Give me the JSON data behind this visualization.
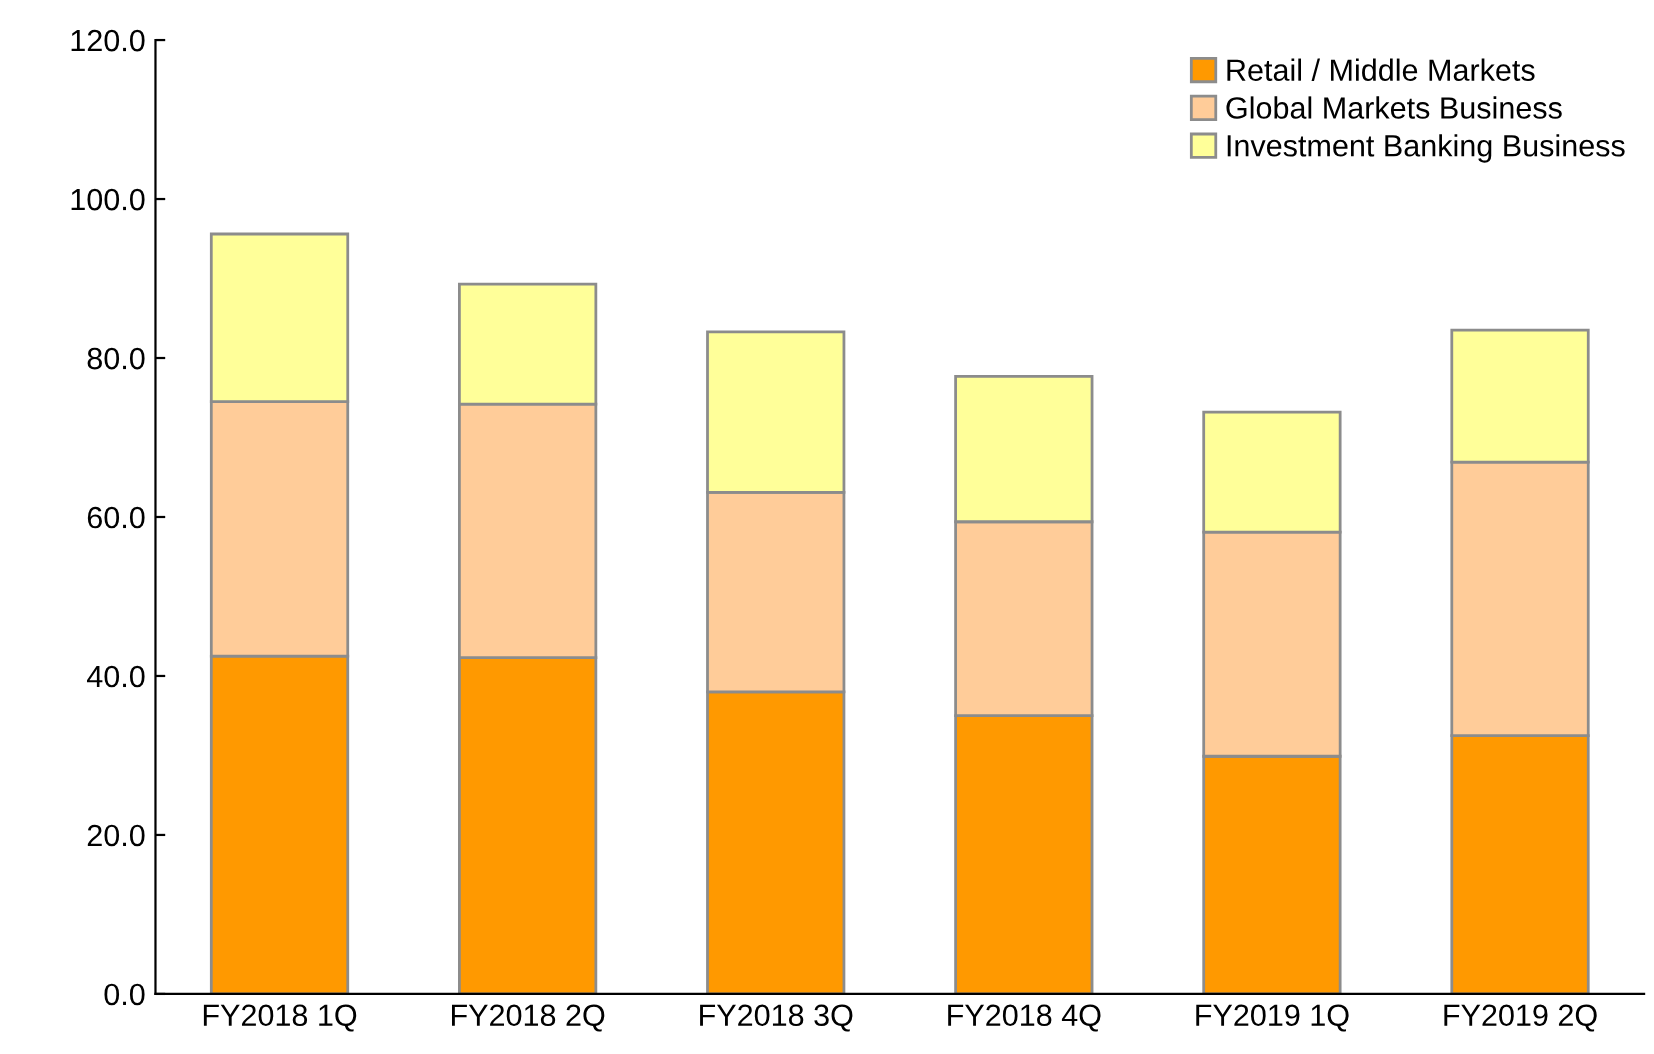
{
  "chart_data": {
    "type": "bar",
    "stacked": true,
    "categories": [
      "FY2018 1Q",
      "FY2018 2Q",
      "FY2018 3Q",
      "FY2018 4Q",
      "FY2019 1Q",
      "FY2019 2Q"
    ],
    "series": [
      {
        "name": "Retail / Middle Markets",
        "color": "#ff9900",
        "values": [
          42.5,
          42.3,
          38.0,
          35.0,
          29.9,
          32.5
        ]
      },
      {
        "name": "Global Markets Business",
        "color": "#ffcc99",
        "values": [
          32.0,
          31.9,
          25.1,
          24.4,
          28.2,
          34.4
        ]
      },
      {
        "name": "Investment Banking Business",
        "color": "#ffff99",
        "values": [
          21.1,
          15.1,
          20.2,
          18.3,
          15.1,
          16.6
        ]
      }
    ],
    "ylim": [
      0,
      120
    ],
    "yticks": [
      {
        "value": 0,
        "label": "0.0"
      },
      {
        "value": 20,
        "label": "20.0"
      },
      {
        "value": 40,
        "label": "40.0"
      },
      {
        "value": 60,
        "label": "60.0"
      },
      {
        "value": 80,
        "label": "80.0"
      },
      {
        "value": 100,
        "label": "100.0"
      },
      {
        "value": 120,
        "label": "120.0"
      }
    ],
    "grid": false,
    "legend": "top right"
  }
}
